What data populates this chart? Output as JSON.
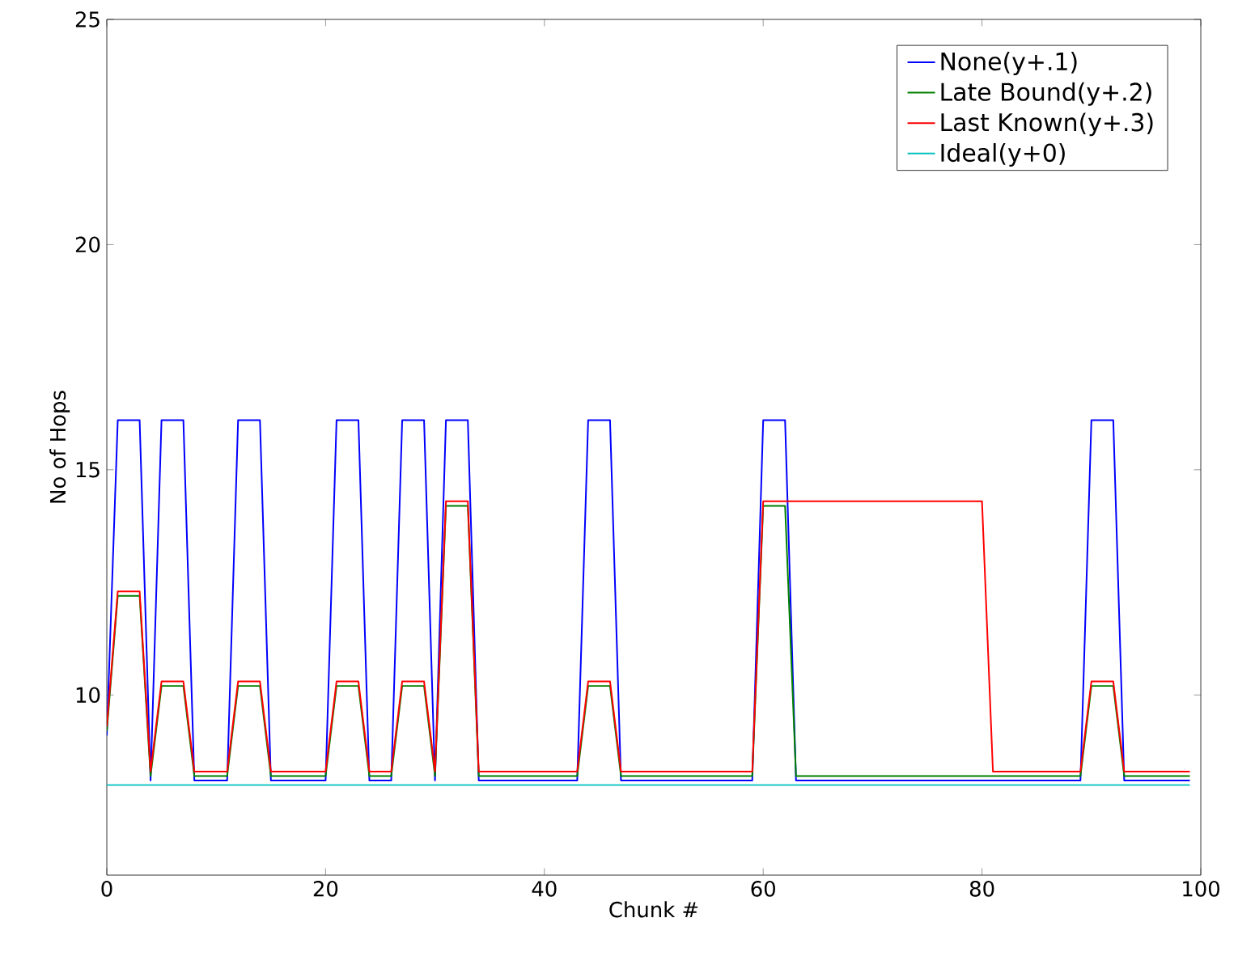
{
  "chart_data": {
    "type": "line",
    "xlabel": "Chunk #",
    "ylabel": "No of Hops",
    "xlim": [
      0,
      100
    ],
    "ylim": [
      6,
      25
    ],
    "xticks": [
      0,
      20,
      40,
      60,
      80,
      100
    ],
    "yticks": [
      10,
      15,
      20,
      25
    ],
    "grid": false,
    "legend": "top right",
    "marker": "none",
    "line_style": "solid",
    "series": [
      {
        "name": "None(y+.1)",
        "color": "#0000ff",
        "x": [
          0,
          1,
          3,
          4,
          5,
          7,
          8,
          11,
          12,
          14,
          15,
          20,
          21,
          23,
          24,
          26,
          27,
          29,
          30,
          31,
          33,
          34,
          43,
          44,
          46,
          47,
          59,
          60,
          62,
          63,
          89,
          90,
          92,
          93,
          99
        ],
        "values": [
          9.1,
          16.1,
          16.1,
          8.1,
          16.1,
          16.1,
          8.1,
          8.1,
          16.1,
          16.1,
          8.1,
          8.1,
          16.1,
          16.1,
          8.1,
          8.1,
          16.1,
          16.1,
          8.1,
          16.1,
          16.1,
          8.1,
          8.1,
          16.1,
          16.1,
          8.1,
          8.1,
          16.1,
          16.1,
          8.1,
          8.1,
          16.1,
          16.1,
          8.1,
          8.1
        ]
      },
      {
        "name": "Late Bound(y+.2)",
        "color": "#008000",
        "x": [
          0,
          1,
          3,
          4,
          5,
          7,
          8,
          11,
          12,
          14,
          15,
          20,
          21,
          23,
          24,
          26,
          27,
          29,
          30,
          31,
          33,
          34,
          43,
          44,
          46,
          47,
          59,
          60,
          62,
          63,
          89,
          90,
          92,
          93,
          99
        ],
        "values": [
          9.2,
          12.2,
          12.2,
          8.2,
          10.2,
          10.2,
          8.2,
          8.2,
          10.2,
          10.2,
          8.2,
          8.2,
          10.2,
          10.2,
          8.2,
          8.2,
          10.2,
          10.2,
          8.2,
          14.2,
          14.2,
          8.2,
          8.2,
          10.2,
          10.2,
          8.2,
          8.2,
          14.2,
          14.2,
          8.2,
          8.2,
          10.2,
          10.2,
          8.2,
          8.2
        ]
      },
      {
        "name": "Last Known(y+.3)",
        "color": "#ff0000",
        "x": [
          0,
          1,
          3,
          4,
          5,
          7,
          8,
          11,
          12,
          14,
          15,
          20,
          21,
          23,
          24,
          26,
          27,
          29,
          30,
          31,
          33,
          34,
          43,
          44,
          46,
          47,
          59,
          60,
          80,
          81,
          89,
          90,
          92,
          93,
          99
        ],
        "values": [
          9.3,
          12.3,
          12.3,
          8.3,
          10.3,
          10.3,
          8.3,
          8.3,
          10.3,
          10.3,
          8.3,
          8.3,
          10.3,
          10.3,
          8.3,
          8.3,
          10.3,
          10.3,
          8.3,
          14.3,
          14.3,
          8.3,
          8.3,
          10.3,
          10.3,
          8.3,
          8.3,
          14.3,
          14.3,
          8.3,
          8.3,
          10.3,
          10.3,
          8.3,
          8.3
        ]
      },
      {
        "name": "Ideal(y+0)",
        "color": "#00bfbf",
        "x": [
          0,
          99
        ],
        "values": [
          8,
          8
        ]
      }
    ]
  }
}
